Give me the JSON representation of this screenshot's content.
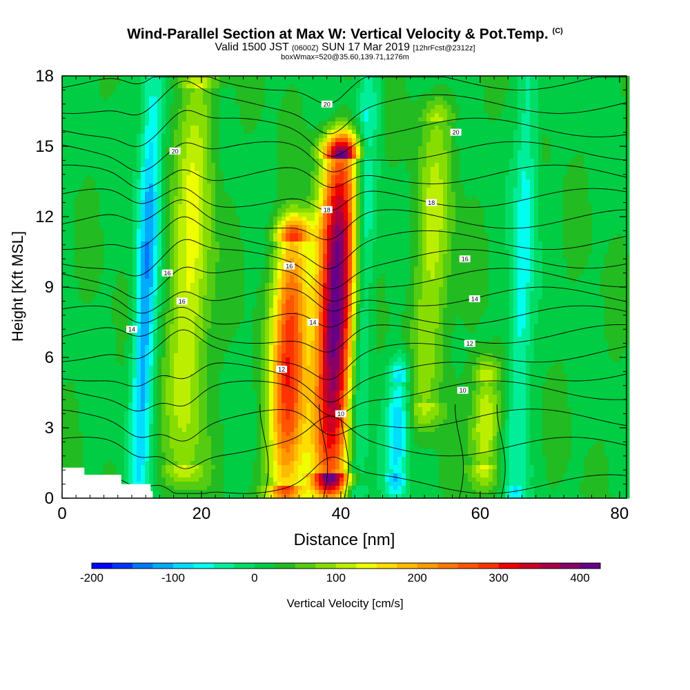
{
  "header": {
    "title": "Wind-Parallel Section at Max W: Vertical Velocity & Pot.Temp.",
    "copyright": "(C)",
    "subtitle_a": "Valid 1500 JST",
    "subtitle_b": "(0600Z)",
    "subtitle_c": "SUN 17 Mar 2019",
    "subtitle_d": "[12hrFcst@2312z]",
    "subtitle_line2": "boxWmax=520@35.60,139.71,1276m"
  },
  "chart_data": {
    "type": "heatmap",
    "xlabel": "Distance [nm]",
    "ylabel": "Height [Kft MSL]",
    "xlim": [
      0,
      81
    ],
    "ylim": [
      0,
      18
    ],
    "x_ticks": [
      0,
      20,
      40,
      60,
      80
    ],
    "y_ticks": [
      0,
      3,
      6,
      9,
      12,
      15,
      18
    ],
    "colorbar": {
      "label": "Vertical Velocity [cm/s]",
      "range": [
        -200,
        425
      ],
      "ticks": [
        -200,
        -100,
        0,
        100,
        200,
        300,
        400
      ],
      "colors": [
        "#0000ff",
        "#0033ff",
        "#0077ff",
        "#00aaff",
        "#00ddff",
        "#00ffee",
        "#00ee99",
        "#00dd66",
        "#00cc44",
        "#22bb22",
        "#55cc11",
        "#88dd00",
        "#bbee00",
        "#eeff00",
        "#ffdd00",
        "#ffbb00",
        "#ff9900",
        "#ff7700",
        "#ff5500",
        "#ff3300",
        "#ee0000",
        "#cc0022",
        "#aa0044",
        "#880066",
        "#660088"
      ]
    },
    "velocity_features": [
      {
        "kind": "downdraft",
        "x": 11,
        "ylow": 0.5,
        "ytop": 18,
        "peak": -120
      },
      {
        "kind": "updraft",
        "x": 17.5,
        "ylow": 1.5,
        "ytop": 17.5,
        "peak": 130
      },
      {
        "kind": "updraft",
        "x": 32,
        "ylow": 0.5,
        "ytop": 11,
        "peak": 300
      },
      {
        "kind": "updraft",
        "x": 38.5,
        "ylow": 1,
        "ytop": 14.5,
        "peak": 425
      },
      {
        "kind": "downdraft",
        "x": 42,
        "ylow": 0.5,
        "ytop": 18,
        "peak": -80
      },
      {
        "kind": "downdraft",
        "x": 48,
        "ylow": 1,
        "ytop": 5,
        "peak": -100
      },
      {
        "kind": "updraft",
        "x": 52.5,
        "ylow": 4,
        "ytop": 16,
        "peak": 105
      },
      {
        "kind": "updraft",
        "x": 60.5,
        "ylow": 1.5,
        "ytop": 5,
        "peak": 140
      },
      {
        "kind": "downdraft",
        "x": 65,
        "ylow": 0.5,
        "ytop": 18,
        "peak": -70
      }
    ],
    "contour_labels": [
      {
        "text": "20",
        "x": 38,
        "y": 16.8
      },
      {
        "text": "20",
        "x": 56.5,
        "y": 15.6
      },
      {
        "text": "20",
        "x": 16.2,
        "y": 14.8
      },
      {
        "text": "18",
        "x": 38,
        "y": 12.3
      },
      {
        "text": "18",
        "x": 53,
        "y": 12.6
      },
      {
        "text": "16",
        "x": 32.6,
        "y": 9.9
      },
      {
        "text": "16",
        "x": 57.8,
        "y": 10.2
      },
      {
        "text": "16",
        "x": 15.1,
        "y": 9.6
      },
      {
        "text": "16",
        "x": 17.2,
        "y": 8.4
      },
      {
        "text": "14",
        "x": 36,
        "y": 7.5
      },
      {
        "text": "14",
        "x": 59.2,
        "y": 8.5
      },
      {
        "text": "14",
        "x": 10,
        "y": 7.2
      },
      {
        "text": "12",
        "x": 31.5,
        "y": 5.5
      },
      {
        "text": "12",
        "x": 58.5,
        "y": 6.6
      },
      {
        "text": "10",
        "x": 57.5,
        "y": 4.6
      },
      {
        "text": "10",
        "x": 40,
        "y": 3.6
      }
    ]
  }
}
